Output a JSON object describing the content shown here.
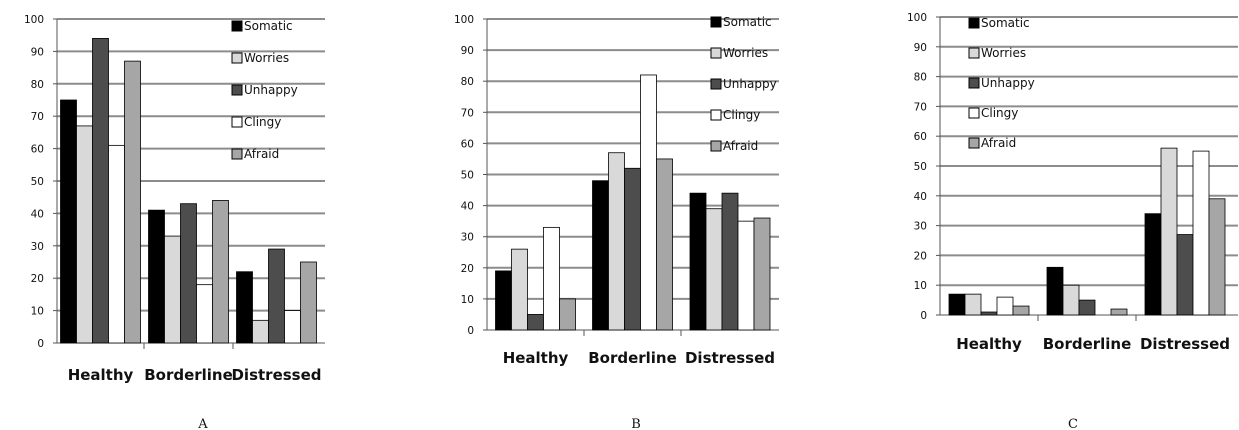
{
  "colors": {
    "Somatic": "#000000",
    "Worries": "#d9d9d9",
    "Unhappy": "#4d4d4d",
    "Clingy": "#ffffff",
    "Afraid": "#a6a6a6",
    "grid": "#8c8c8c"
  },
  "chart_data": [
    {
      "type": "bar",
      "panel_label": "A",
      "categories": [
        "Healthy",
        "Borderline",
        "Distressed"
      ],
      "ylim": [
        0,
        100
      ],
      "y_ticks": [
        0,
        10,
        20,
        30,
        40,
        50,
        60,
        70,
        80,
        90,
        100
      ],
      "grid": true,
      "legend_position": "top-right",
      "series": [
        {
          "name": "Somatic",
          "values": [
            75,
            41,
            22
          ]
        },
        {
          "name": "Worries",
          "values": [
            67,
            33,
            7
          ]
        },
        {
          "name": "Unhappy",
          "values": [
            94,
            43,
            29
          ]
        },
        {
          "name": "Clingy",
          "values": [
            61,
            18,
            10
          ]
        },
        {
          "name": "Afraid",
          "values": [
            87,
            44,
            25
          ]
        }
      ]
    },
    {
      "type": "bar",
      "panel_label": "B",
      "categories": [
        "Healthy",
        "Borderline",
        "Distressed"
      ],
      "ylim": [
        0,
        100
      ],
      "y_ticks": [
        0,
        10,
        20,
        30,
        40,
        50,
        60,
        70,
        80,
        90,
        100
      ],
      "grid": true,
      "legend_position": "top-right",
      "series": [
        {
          "name": "Somatic",
          "values": [
            19,
            48,
            44
          ]
        },
        {
          "name": "Worries",
          "values": [
            26,
            57,
            39
          ]
        },
        {
          "name": "Unhappy",
          "values": [
            5,
            52,
            44
          ]
        },
        {
          "name": "Clingy",
          "values": [
            33,
            82,
            35
          ]
        },
        {
          "name": "Afraid",
          "values": [
            10,
            55,
            36
          ]
        }
      ]
    },
    {
      "type": "bar",
      "panel_label": "C",
      "categories": [
        "Healthy",
        "Borderline",
        "Distressed"
      ],
      "ylim": [
        0,
        100
      ],
      "y_ticks": [
        0,
        10,
        20,
        30,
        40,
        50,
        60,
        70,
        80,
        90,
        100
      ],
      "grid": true,
      "legend_position": "top-left",
      "series": [
        {
          "name": "Somatic",
          "values": [
            7,
            16,
            34
          ]
        },
        {
          "name": "Worries",
          "values": [
            7,
            10,
            56
          ]
        },
        {
          "name": "Unhappy",
          "values": [
            1,
            5,
            27
          ]
        },
        {
          "name": "Clingy",
          "values": [
            6,
            0,
            55
          ]
        },
        {
          "name": "Afraid",
          "values": [
            3,
            2,
            39
          ]
        }
      ]
    }
  ]
}
